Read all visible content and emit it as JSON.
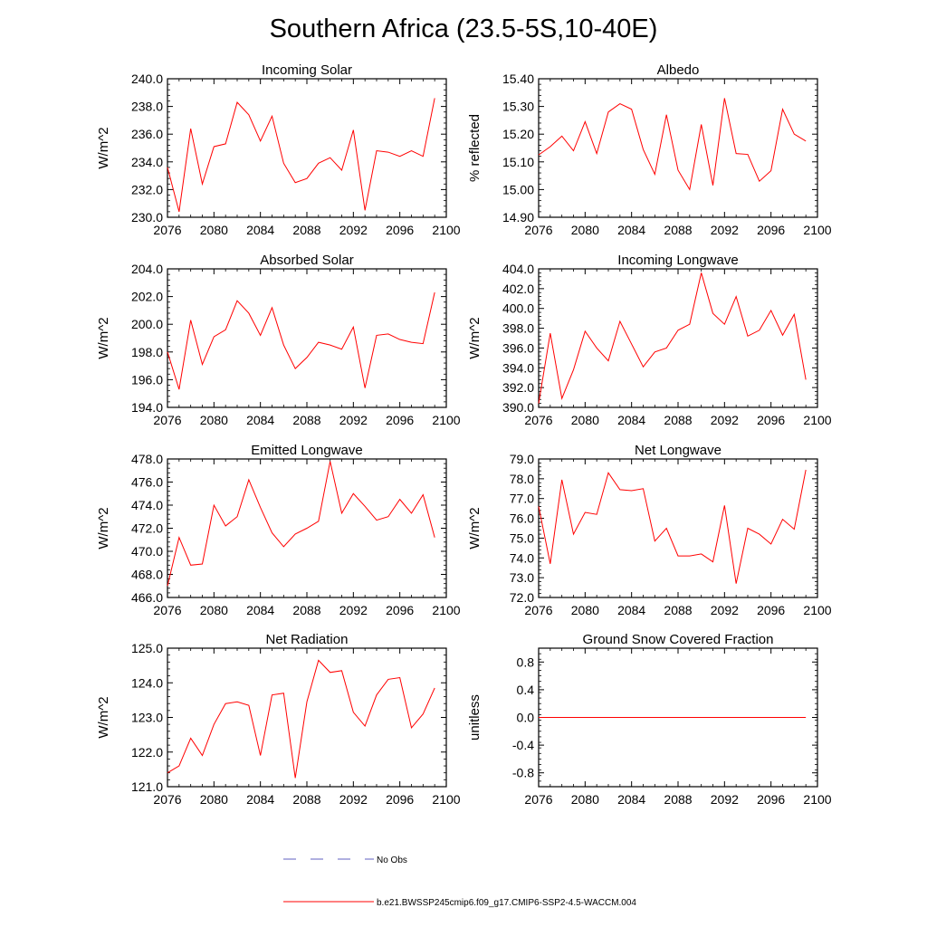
{
  "title": "Southern Africa (23.5-5S,10-40E)",
  "chart_data": [
    {
      "type": "line",
      "title": "Incoming Solar",
      "ylabel": "W/m^2",
      "xlim": [
        2076,
        2100
      ],
      "ylim": [
        230.0,
        240.0
      ],
      "x_ticks": [
        2076,
        2080,
        2084,
        2088,
        2092,
        2096,
        2100
      ],
      "y_ticks": [
        230.0,
        232.0,
        234.0,
        236.0,
        238.0,
        240.0
      ],
      "y_tick_labels": [
        "230.0",
        "232.0",
        "234.0",
        "236.0",
        "238.0",
        "240.0"
      ],
      "x": [
        2076,
        2077,
        2078,
        2079,
        2080,
        2081,
        2082,
        2083,
        2084,
        2085,
        2086,
        2087,
        2088,
        2089,
        2090,
        2091,
        2092,
        2093,
        2094,
        2095,
        2096,
        2097,
        2098,
        2099
      ],
      "series": [
        {
          "values": [
            233.6,
            230.4,
            236.4,
            232.4,
            235.1,
            235.3,
            238.3,
            237.4,
            235.5,
            237.3,
            233.9,
            232.5,
            232.8,
            233.9,
            234.3,
            233.4,
            236.3,
            230.5,
            234.8,
            234.7,
            234.4,
            234.8,
            234.4,
            238.6
          ],
          "color": "#ff0000"
        }
      ]
    },
    {
      "type": "line",
      "title": "Albedo",
      "ylabel": "% reflected",
      "xlim": [
        2076,
        2100
      ],
      "ylim": [
        14.9,
        15.4
      ],
      "x_ticks": [
        2076,
        2080,
        2084,
        2088,
        2092,
        2096,
        2100
      ],
      "y_ticks": [
        14.9,
        15.0,
        15.1,
        15.2,
        15.3,
        15.4
      ],
      "y_tick_labels": [
        "14.90",
        "15.00",
        "15.10",
        "15.20",
        "15.30",
        "15.40"
      ],
      "x": [
        2076,
        2077,
        2078,
        2079,
        2080,
        2081,
        2082,
        2083,
        2084,
        2085,
        2086,
        2087,
        2088,
        2089,
        2090,
        2091,
        2092,
        2093,
        2094,
        2095,
        2096,
        2097,
        2098,
        2099
      ],
      "series": [
        {
          "values": [
            15.125,
            15.155,
            15.193,
            15.14,
            15.245,
            15.13,
            15.28,
            15.31,
            15.29,
            15.145,
            15.055,
            15.27,
            15.07,
            15.0,
            15.235,
            15.015,
            15.33,
            15.13,
            15.127,
            15.03,
            15.068,
            15.29,
            15.2,
            15.175
          ],
          "color": "#ff0000"
        }
      ]
    },
    {
      "type": "line",
      "title": "Absorbed Solar",
      "ylabel": "W/m^2",
      "xlim": [
        2076,
        2100
      ],
      "ylim": [
        194.0,
        204.0
      ],
      "x_ticks": [
        2076,
        2080,
        2084,
        2088,
        2092,
        2096,
        2100
      ],
      "y_ticks": [
        194.0,
        196.0,
        198.0,
        200.0,
        202.0,
        204.0
      ],
      "y_tick_labels": [
        "194.0",
        "196.0",
        "198.0",
        "200.0",
        "202.0",
        "204.0"
      ],
      "x": [
        2076,
        2077,
        2078,
        2079,
        2080,
        2081,
        2082,
        2083,
        2084,
        2085,
        2086,
        2087,
        2088,
        2089,
        2090,
        2091,
        2092,
        2093,
        2094,
        2095,
        2096,
        2097,
        2098,
        2099
      ],
      "series": [
        {
          "values": [
            198.0,
            195.3,
            200.3,
            197.1,
            199.1,
            199.6,
            201.7,
            200.8,
            199.2,
            201.2,
            198.5,
            196.8,
            197.6,
            198.7,
            198.5,
            198.2,
            199.8,
            195.4,
            199.2,
            199.3,
            198.9,
            198.7,
            198.6,
            202.3
          ],
          "color": "#ff0000"
        }
      ]
    },
    {
      "type": "line",
      "title": "Incoming Longwave",
      "ylabel": "W/m^2",
      "xlim": [
        2076,
        2100
      ],
      "ylim": [
        390.0,
        404.0
      ],
      "x_ticks": [
        2076,
        2080,
        2084,
        2088,
        2092,
        2096,
        2100
      ],
      "y_ticks": [
        390.0,
        392.0,
        394.0,
        396.0,
        398.0,
        400.0,
        402.0,
        404.0
      ],
      "y_tick_labels": [
        "390.0",
        "392.0",
        "394.0",
        "396.0",
        "398.0",
        "400.0",
        "402.0",
        "404.0"
      ],
      "x": [
        2076,
        2077,
        2078,
        2079,
        2080,
        2081,
        2082,
        2083,
        2084,
        2085,
        2086,
        2087,
        2088,
        2089,
        2090,
        2091,
        2092,
        2093,
        2094,
        2095,
        2096,
        2097,
        2098,
        2099
      ],
      "series": [
        {
          "values": [
            390.4,
            397.5,
            390.9,
            393.8,
            397.7,
            396.0,
            394.7,
            398.7,
            396.4,
            394.1,
            395.6,
            396.0,
            397.8,
            398.4,
            403.6,
            399.5,
            398.4,
            401.2,
            397.2,
            397.8,
            399.8,
            397.3,
            399.4,
            392.8
          ],
          "color": "#ff0000"
        }
      ]
    },
    {
      "type": "line",
      "title": "Emitted Longwave",
      "ylabel": "W/m^2",
      "xlim": [
        2076,
        2100
      ],
      "ylim": [
        466.0,
        478.0
      ],
      "x_ticks": [
        2076,
        2080,
        2084,
        2088,
        2092,
        2096,
        2100
      ],
      "y_ticks": [
        466.0,
        468.0,
        470.0,
        472.0,
        474.0,
        476.0,
        478.0
      ],
      "y_tick_labels": [
        "466.0",
        "468.0",
        "470.0",
        "472.0",
        "474.0",
        "476.0",
        "478.0"
      ],
      "x": [
        2076,
        2077,
        2078,
        2079,
        2080,
        2081,
        2082,
        2083,
        2084,
        2085,
        2086,
        2087,
        2088,
        2089,
        2090,
        2091,
        2092,
        2093,
        2094,
        2095,
        2096,
        2097,
        2098,
        2099
      ],
      "series": [
        {
          "values": [
            467.0,
            471.2,
            468.8,
            468.9,
            474.0,
            472.2,
            473.0,
            476.2,
            473.8,
            471.6,
            470.4,
            471.5,
            472.0,
            472.6,
            477.8,
            473.3,
            475.0,
            473.9,
            472.7,
            473.0,
            474.5,
            473.3,
            474.9,
            471.2
          ],
          "color": "#ff0000"
        }
      ]
    },
    {
      "type": "line",
      "title": "Net Longwave",
      "ylabel": "W/m^2",
      "xlim": [
        2076,
        2100
      ],
      "ylim": [
        72.0,
        79.0
      ],
      "x_ticks": [
        2076,
        2080,
        2084,
        2088,
        2092,
        2096,
        2100
      ],
      "y_ticks": [
        72.0,
        73.0,
        74.0,
        75.0,
        76.0,
        77.0,
        78.0,
        79.0
      ],
      "y_tick_labels": [
        "72.0",
        "73.0",
        "74.0",
        "75.0",
        "76.0",
        "77.0",
        "78.0",
        "79.0"
      ],
      "x": [
        2076,
        2077,
        2078,
        2079,
        2080,
        2081,
        2082,
        2083,
        2084,
        2085,
        2086,
        2087,
        2088,
        2089,
        2090,
        2091,
        2092,
        2093,
        2094,
        2095,
        2096,
        2097,
        2098,
        2099
      ],
      "series": [
        {
          "values": [
            76.6,
            73.7,
            77.95,
            75.2,
            76.3,
            76.2,
            78.3,
            77.45,
            77.4,
            77.5,
            74.85,
            75.5,
            74.1,
            74.1,
            74.2,
            73.8,
            76.65,
            72.7,
            75.5,
            75.2,
            74.7,
            75.95,
            75.45,
            78.45
          ],
          "color": "#ff0000"
        }
      ]
    },
    {
      "type": "line",
      "title": "Net Radiation",
      "ylabel": "W/m^2",
      "xlim": [
        2076,
        2100
      ],
      "ylim": [
        121.0,
        125.0
      ],
      "x_ticks": [
        2076,
        2080,
        2084,
        2088,
        2092,
        2096,
        2100
      ],
      "y_ticks": [
        121.0,
        122.0,
        123.0,
        124.0,
        125.0
      ],
      "y_tick_labels": [
        "121.0",
        "122.0",
        "123.0",
        "124.0",
        "125.0"
      ],
      "x": [
        2076,
        2077,
        2078,
        2079,
        2080,
        2081,
        2082,
        2083,
        2084,
        2085,
        2086,
        2087,
        2088,
        2089,
        2090,
        2091,
        2092,
        2093,
        2094,
        2095,
        2096,
        2097,
        2098,
        2099
      ],
      "series": [
        {
          "values": [
            121.4,
            121.6,
            122.4,
            121.9,
            122.8,
            123.4,
            123.45,
            123.35,
            121.9,
            123.65,
            123.7,
            121.25,
            123.45,
            124.65,
            124.3,
            124.35,
            123.15,
            122.75,
            123.65,
            124.1,
            124.15,
            122.7,
            123.1,
            123.85
          ],
          "color": "#ff0000"
        }
      ]
    },
    {
      "type": "line",
      "title": "Ground Snow Covered Fraction",
      "ylabel": "unitless",
      "xlim": [
        2076,
        2100
      ],
      "ylim": [
        -1.0,
        1.0
      ],
      "x_ticks": [
        2076,
        2080,
        2084,
        2088,
        2092,
        2096,
        2100
      ],
      "y_ticks": [
        -0.8,
        -0.4,
        0.0,
        0.4,
        0.8
      ],
      "y_tick_labels": [
        "-0.8",
        "-0.4",
        "0.0",
        "0.4",
        "0.8"
      ],
      "x": [
        2076,
        2099
      ],
      "series": [
        {
          "values": [
            0.0,
            0.0
          ],
          "color": "#ff0000"
        }
      ]
    }
  ],
  "legend": {
    "items": [
      {
        "label": "No Obs",
        "color": "#6060c0",
        "dash": true
      },
      {
        "label": "b.e21.BWSSP245cmip6.f09_g17.CMIP6-SSP2-4.5-WACCM.004",
        "color": "#ff0000",
        "dash": false
      }
    ]
  }
}
